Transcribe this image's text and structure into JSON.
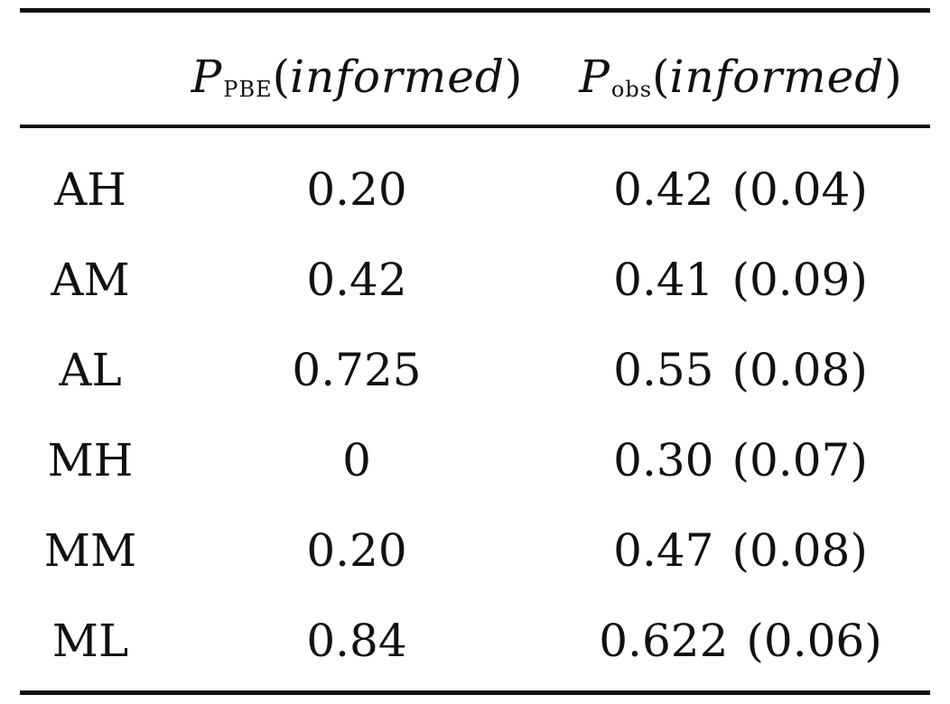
{
  "table": {
    "headers": [
      {
        "symbol": "P",
        "subscript": "PBE",
        "argument": "informed"
      },
      {
        "symbol": "P",
        "subscript": "obs",
        "argument": "informed"
      }
    ],
    "rows": [
      {
        "label": "AH",
        "p_pbe": "0.20",
        "p_obs": "0.42",
        "p_obs_sd": "(0.04)"
      },
      {
        "label": "AM",
        "p_pbe": "0.42",
        "p_obs": "0.41",
        "p_obs_sd": "(0.09)"
      },
      {
        "label": "AL",
        "p_pbe": "0.725",
        "p_obs": "0.55",
        "p_obs_sd": "(0.08)"
      },
      {
        "label": "MH",
        "p_pbe": "0",
        "p_obs": "0.30",
        "p_obs_sd": "(0.07)"
      },
      {
        "label": "MM",
        "p_pbe": "0.20",
        "p_obs": "0.47",
        "p_obs_sd": "(0.08)"
      },
      {
        "label": "ML",
        "p_pbe": "0.84",
        "p_obs": "0.622",
        "p_obs_sd": "(0.06)"
      }
    ]
  }
}
